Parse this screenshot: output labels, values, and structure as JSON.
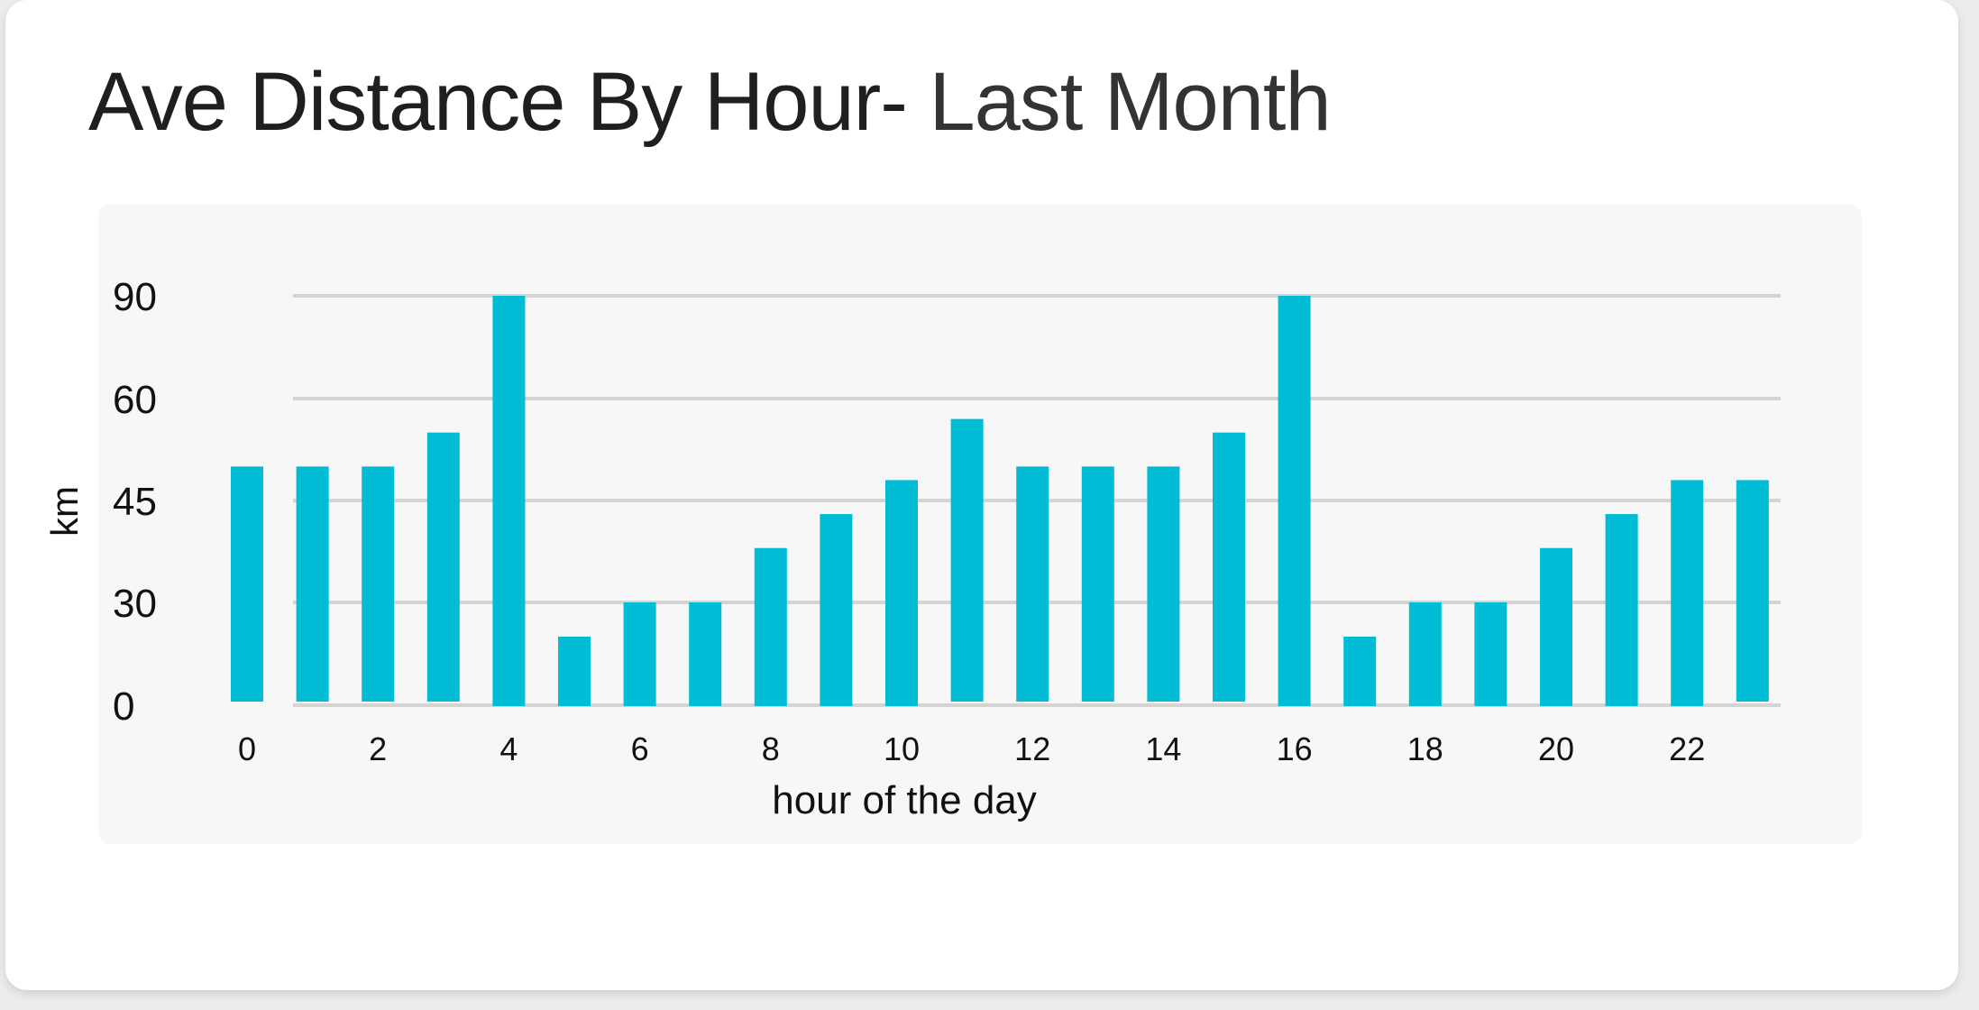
{
  "title": "Ave Distance By Hour-",
  "subtitle": "Last Month",
  "colors": {
    "bar": "#00bcd4",
    "grid": "#d4d4d4",
    "panel": "#f7f7f7",
    "text": "#111111",
    "axis_label": "#888888"
  },
  "chart_data": {
    "type": "bar",
    "title": "Ave Distance By Hour- Last Month",
    "xlabel": "hour of the day",
    "ylabel": "km",
    "categories": [
      0,
      1,
      2,
      3,
      4,
      5,
      6,
      7,
      8,
      9,
      10,
      11,
      12,
      13,
      14,
      15,
      16,
      17,
      18,
      19,
      20,
      21,
      22,
      23
    ],
    "x_tick_labels": [
      "0",
      "2",
      "4",
      "6",
      "8",
      "10",
      "12",
      "14",
      "16",
      "18",
      "20",
      "22"
    ],
    "x_tick_positions": [
      0,
      2,
      4,
      6,
      8,
      10,
      12,
      14,
      16,
      18,
      20,
      22
    ],
    "y_tick_labels": [
      "0",
      "30",
      "45",
      "60",
      "90"
    ],
    "y_tick_values": [
      0,
      30,
      45,
      60,
      90
    ],
    "values": [
      50,
      50,
      50,
      55,
      90,
      20,
      30,
      30,
      38,
      43,
      48,
      57,
      50,
      50,
      50,
      55,
      90,
      20,
      30,
      30,
      38,
      43,
      48,
      48
    ],
    "ylim": [
      0,
      90
    ],
    "grid": true,
    "legend": "none"
  }
}
